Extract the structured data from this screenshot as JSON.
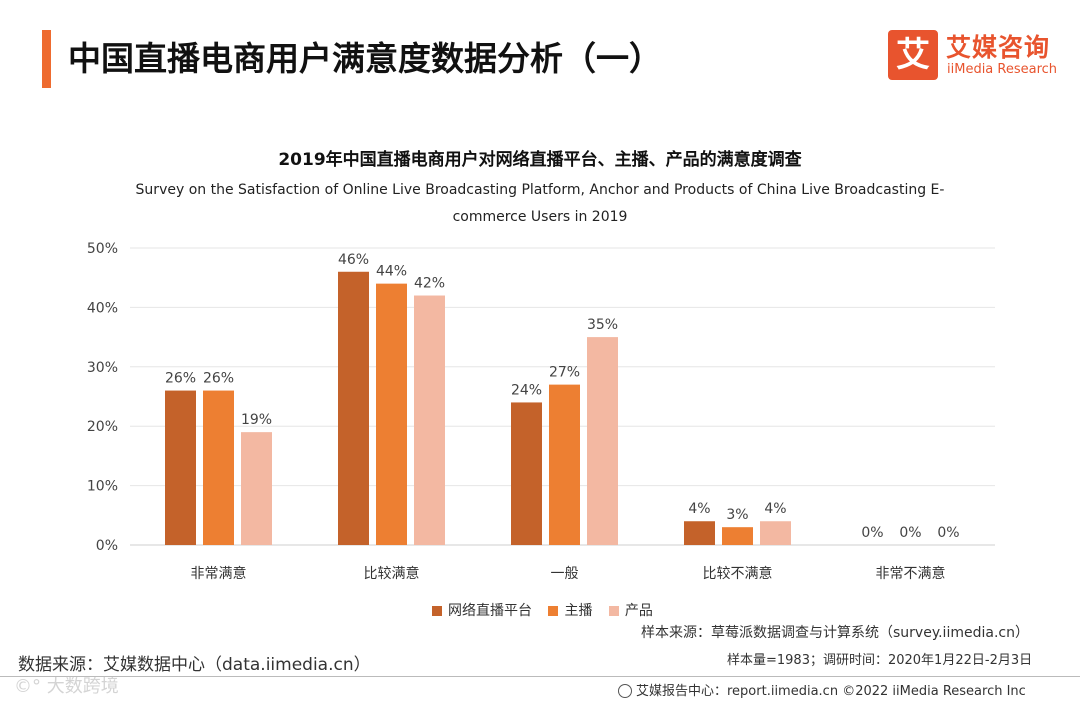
{
  "header": {
    "title": "中国直播电商用户满意度数据分析（一）"
  },
  "logo": {
    "mark": "艾",
    "name_cn": "艾媒咨询",
    "name_en": "iiMedia Research"
  },
  "chart_data": {
    "type": "bar",
    "title": "2019年中国直播电商用户对网络直播平台、主播、产品的满意度调查",
    "subtitle_lines": [
      "Survey on the Satisfaction of Online Live Broadcasting Platform, Anchor and Products of China Live Broadcasting E-",
      "commerce Users in 2019"
    ],
    "categories": [
      "非常满意",
      "比较满意",
      "一般",
      "比较不满意",
      "非常不满意"
    ],
    "series": [
      {
        "name": "网络直播平台",
        "color": "#c4622a",
        "values": [
          26,
          46,
          24,
          4,
          0
        ]
      },
      {
        "name": "主播",
        "color": "#ed7f32",
        "values": [
          26,
          44,
          27,
          3,
          0
        ]
      },
      {
        "name": "产品",
        "color": "#f3b8a2",
        "values": [
          19,
          42,
          35,
          4,
          0
        ]
      }
    ],
    "y_ticks": [
      "0%",
      "10%",
      "20%",
      "30%",
      "40%",
      "50%"
    ],
    "ylim": [
      0,
      50
    ],
    "value_suffix": "%",
    "grid": true,
    "legend": "bottom-center"
  },
  "notes": {
    "sample_source": "样本来源：草莓派数据调查与计算系统（survey.iimedia.cn）",
    "sample_size": "样本量=1983；调研时间：2020年1月22日-2月3日"
  },
  "data_source": "数据来源：艾媒数据中心（data.iimedia.cn）",
  "watermark": "©° 大数跨境",
  "footer": {
    "text": "艾媒报告中心：report.iimedia.cn  ©2022  iiMedia Research  Inc"
  }
}
